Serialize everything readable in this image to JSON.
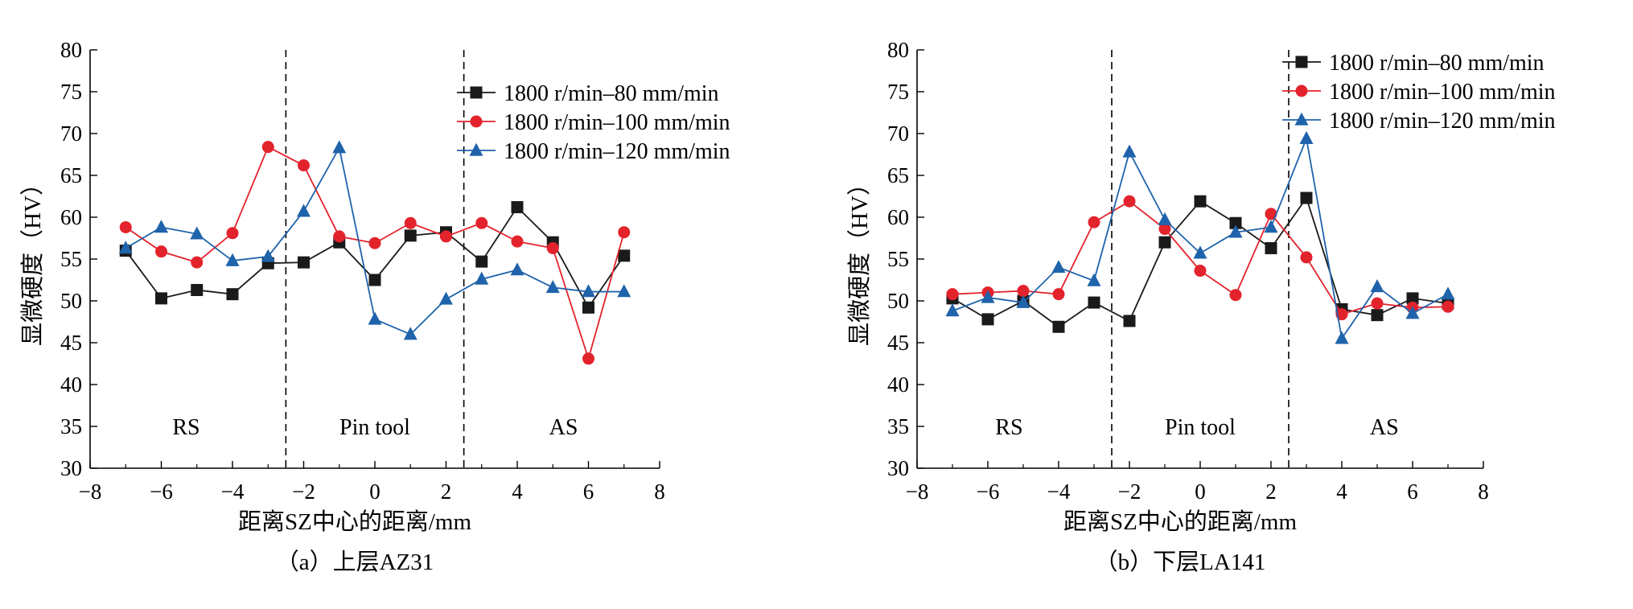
{
  "chart_data": [
    {
      "type": "line",
      "caption": "（a）上层AZ31",
      "xlabel": "距离SZ中心的距离/mm",
      "ylabel": "显微硬度（HV）",
      "xlim": [
        -8,
        8
      ],
      "ylim": [
        30,
        80
      ],
      "xticks": [
        -8,
        -6,
        -4,
        -2,
        0,
        2,
        4,
        6,
        8
      ],
      "yticks": [
        30,
        35,
        40,
        45,
        50,
        55,
        60,
        65,
        70,
        75,
        80
      ],
      "grid": false,
      "legend_position": "top-right",
      "regions": [
        {
          "label": "RS",
          "x": -5.3
        },
        {
          "label": "Pin tool",
          "x": 0
        },
        {
          "label": "AS",
          "x": 5.3
        }
      ],
      "boundaries": [
        -2.5,
        2.5
      ],
      "x": [
        -7,
        -6,
        -5,
        -4,
        -3,
        -2,
        -1,
        0,
        1,
        2,
        3,
        4,
        5,
        6,
        7
      ],
      "series": [
        {
          "name": "1800 r/min–80 mm/min",
          "color": "#1a1a1a",
          "marker": "square",
          "values": [
            56.0,
            50.3,
            51.3,
            50.8,
            54.5,
            54.6,
            57.0,
            52.5,
            57.8,
            58.2,
            54.7,
            61.2,
            57.0,
            49.2,
            55.4
          ]
        },
        {
          "name": "1800 r/min–100 mm/min",
          "color": "#e3232c",
          "marker": "circle",
          "values": [
            58.8,
            55.9,
            54.6,
            58.1,
            68.4,
            66.2,
            57.7,
            56.9,
            59.3,
            57.7,
            59.3,
            57.1,
            56.3,
            43.1,
            58.2
          ]
        },
        {
          "name": "1800 r/min–120 mm/min",
          "color": "#1f63ab",
          "marker": "triangle",
          "values": [
            56.3,
            58.8,
            58.0,
            54.8,
            55.3,
            60.7,
            68.3,
            47.8,
            46.0,
            50.2,
            52.6,
            53.7,
            51.6,
            51.1,
            51.1
          ]
        }
      ]
    },
    {
      "type": "line",
      "caption": "（b）下层LA141",
      "xlabel": "距离SZ中心的距离/mm",
      "ylabel": "显微硬度（HV）",
      "xlim": [
        -8,
        8
      ],
      "ylim": [
        30,
        80
      ],
      "xticks": [
        -8,
        -6,
        -4,
        -2,
        0,
        2,
        4,
        6,
        8
      ],
      "yticks": [
        30,
        35,
        40,
        45,
        50,
        55,
        60,
        65,
        70,
        75,
        80
      ],
      "grid": false,
      "legend_position": "top-right",
      "regions": [
        {
          "label": "RS",
          "x": -5.4
        },
        {
          "label": "Pin tool",
          "x": 0
        },
        {
          "label": "AS",
          "x": 5.2
        }
      ],
      "boundaries": [
        -2.5,
        2.5
      ],
      "x": [
        -7,
        -6,
        -5,
        -4,
        -3,
        -2,
        -1,
        0,
        1,
        2,
        3,
        4,
        5,
        6,
        7
      ],
      "series": [
        {
          "name": "1800 r/min–80 mm/min",
          "color": "#1a1a1a",
          "marker": "square",
          "values": [
            50.3,
            47.8,
            50.0,
            46.9,
            49.8,
            47.6,
            57.0,
            61.9,
            59.3,
            56.3,
            62.3,
            49.0,
            48.3,
            50.3,
            49.7
          ]
        },
        {
          "name": "1800 r/min–100 mm/min",
          "color": "#e3232c",
          "marker": "circle",
          "values": [
            50.8,
            51.0,
            51.2,
            50.8,
            59.4,
            61.9,
            58.6,
            53.6,
            50.7,
            60.4,
            55.2,
            48.4,
            49.7,
            49.2,
            49.3
          ]
        },
        {
          "name": "1800 r/min–120 mm/min",
          "color": "#1f63ab",
          "marker": "triangle",
          "values": [
            48.8,
            50.4,
            49.8,
            54.0,
            52.4,
            67.8,
            59.7,
            55.7,
            58.2,
            58.8,
            69.4,
            45.5,
            51.7,
            48.5,
            50.8
          ]
        }
      ]
    }
  ]
}
